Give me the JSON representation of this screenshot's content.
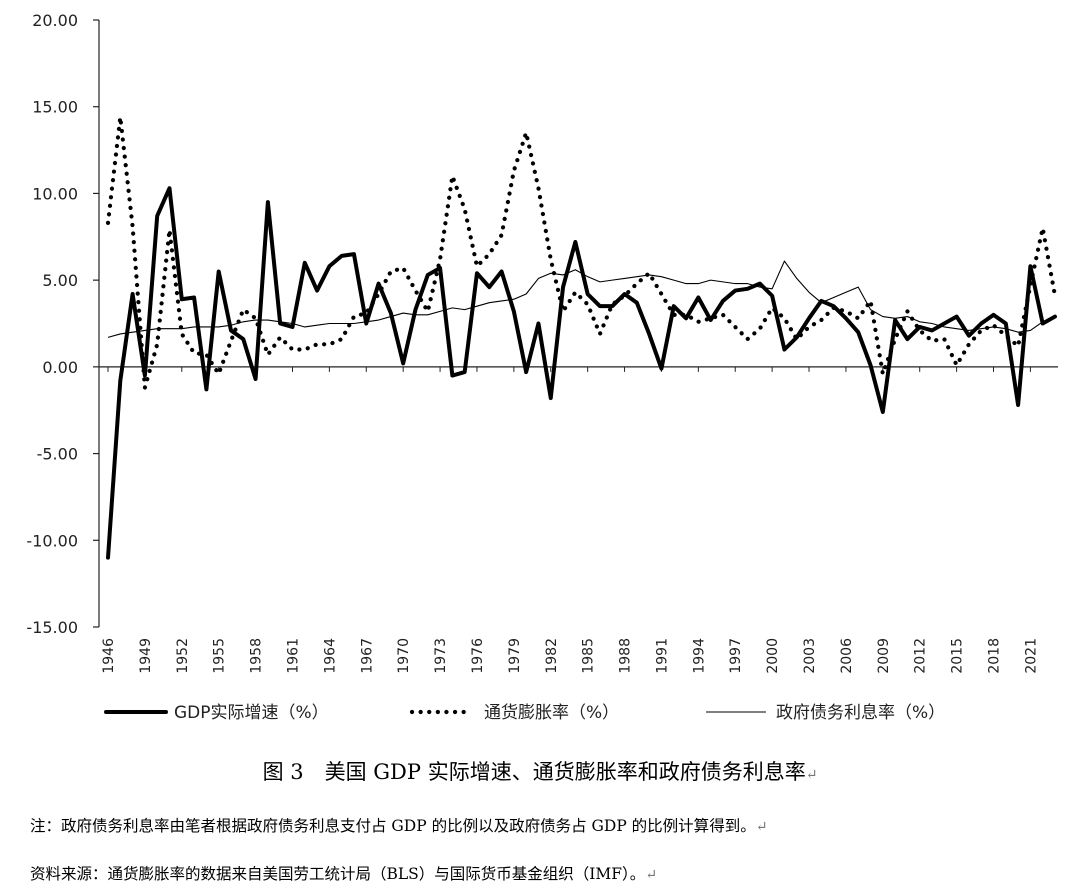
{
  "chart_data": {
    "type": "line",
    "ylim": [
      -15,
      20
    ],
    "yticks": [
      "20.00",
      "15.00",
      "10.00",
      "5.00",
      "0.00",
      "-5.00",
      "-10.00",
      "-15.00"
    ],
    "xlim": [
      1946,
      2023
    ],
    "xticks": [
      "1946",
      "1949",
      "1952",
      "1955",
      "1958",
      "1961",
      "1964",
      "1967",
      "1970",
      "1973",
      "1976",
      "1979",
      "1982",
      "1985",
      "1988",
      "1991",
      "1994",
      "1997",
      "2000",
      "2003",
      "2006",
      "2009",
      "2012",
      "2015",
      "2018",
      "2021"
    ],
    "x": [
      1946,
      1947,
      1948,
      1949,
      1950,
      1951,
      1952,
      1953,
      1954,
      1955,
      1956,
      1957,
      1958,
      1959,
      1960,
      1961,
      1962,
      1963,
      1964,
      1965,
      1966,
      1967,
      1968,
      1969,
      1970,
      1971,
      1972,
      1973,
      1974,
      1975,
      1976,
      1977,
      1978,
      1979,
      1980,
      1981,
      1982,
      1983,
      1984,
      1985,
      1986,
      1987,
      1988,
      1989,
      1990,
      1991,
      1992,
      1993,
      1994,
      1995,
      1996,
      1997,
      1998,
      1999,
      2000,
      2001,
      2002,
      2003,
      2004,
      2005,
      2006,
      2007,
      2008,
      2009,
      2010,
      2011,
      2012,
      2013,
      2014,
      2015,
      2016,
      2017,
      2018,
      2019,
      2020,
      2021,
      2022,
      2023
    ],
    "series": [
      {
        "name": "GDP实际增速（%）",
        "style": "thick-solid",
        "color": "#000000",
        "values": [
          -11.0,
          -0.8,
          4.2,
          -0.5,
          8.7,
          10.3,
          3.9,
          4.0,
          -1.3,
          5.5,
          2.1,
          1.6,
          -0.7,
          9.5,
          2.5,
          2.3,
          6.0,
          4.4,
          5.8,
          6.4,
          6.5,
          2.5,
          4.8,
          3.1,
          0.2,
          3.3,
          5.3,
          5.7,
          -0.5,
          -0.3,
          5.4,
          4.6,
          5.5,
          3.2,
          -0.3,
          2.5,
          -1.8,
          4.6,
          7.2,
          4.2,
          3.5,
          3.5,
          4.2,
          3.7,
          1.9,
          -0.1,
          3.5,
          2.8,
          4.0,
          2.7,
          3.8,
          4.4,
          4.5,
          4.8,
          4.1,
          1.0,
          1.7,
          2.8,
          3.8,
          3.5,
          2.8,
          2.0,
          0.1,
          -2.6,
          2.7,
          1.6,
          2.3,
          2.1,
          2.5,
          2.9,
          1.8,
          2.5,
          3.0,
          2.5,
          -2.2,
          5.8,
          2.5,
          2.9
        ]
      },
      {
        "name": "通货膨胀率（%）",
        "style": "dotted",
        "color": "#000000",
        "values": [
          8.3,
          14.4,
          8.1,
          -1.2,
          1.3,
          7.9,
          1.9,
          0.8,
          0.7,
          -0.4,
          1.5,
          3.3,
          2.8,
          0.7,
          1.7,
          1.0,
          1.0,
          1.3,
          1.3,
          1.6,
          2.9,
          3.1,
          4.2,
          5.5,
          5.7,
          4.4,
          3.2,
          6.2,
          11.0,
          9.1,
          5.8,
          6.5,
          7.6,
          11.3,
          13.5,
          10.3,
          6.2,
          3.2,
          4.3,
          3.6,
          1.9,
          3.6,
          4.1,
          4.8,
          5.4,
          4.2,
          3.0,
          3.0,
          2.6,
          2.8,
          3.0,
          2.3,
          1.6,
          2.2,
          3.4,
          2.8,
          1.6,
          2.3,
          2.7,
          3.4,
          3.2,
          2.8,
          3.8,
          -0.4,
          1.6,
          3.2,
          2.1,
          1.5,
          1.6,
          0.1,
          1.3,
          2.1,
          2.4,
          1.8,
          1.2,
          4.7,
          8.0,
          4.1
        ]
      },
      {
        "name": "政府债务利息率（%）",
        "style": "thin-solid",
        "color": "#000000",
        "values": [
          1.7,
          1.9,
          2.0,
          2.1,
          2.2,
          2.2,
          2.2,
          2.3,
          2.3,
          2.3,
          2.4,
          2.6,
          2.7,
          2.7,
          2.6,
          2.5,
          2.3,
          2.4,
          2.5,
          2.5,
          2.5,
          2.6,
          2.7,
          2.9,
          3.1,
          3.0,
          3.0,
          3.2,
          3.4,
          3.3,
          3.5,
          3.7,
          3.8,
          3.9,
          4.2,
          5.1,
          5.4,
          5.3,
          5.6,
          5.2,
          4.9,
          5.0,
          5.1,
          5.2,
          5.3,
          5.2,
          5.0,
          4.8,
          4.8,
          5.0,
          4.9,
          4.8,
          4.8,
          4.6,
          4.5,
          6.1,
          5.1,
          4.3,
          3.7,
          4.0,
          4.3,
          4.6,
          3.3,
          2.9,
          2.8,
          2.9,
          2.6,
          2.5,
          2.3,
          2.2,
          2.1,
          2.2,
          2.3,
          2.2,
          2.0,
          2.1,
          2.6,
          2.9
        ]
      }
    ]
  },
  "caption": "图 3　美国 GDP 实际增速、通货膨胀率和政府债务利息率",
  "return_mark": "↵",
  "notes": {
    "note": "注：政府债务利息率由笔者根据政府债务利息支付占 GDP 的比例以及政府债务占 GDP 的比例计算得到。",
    "source": "资料来源：通货膨胀率的数据来自美国劳工统计局（BLS）与国际货币基金组织（IMF）。"
  }
}
